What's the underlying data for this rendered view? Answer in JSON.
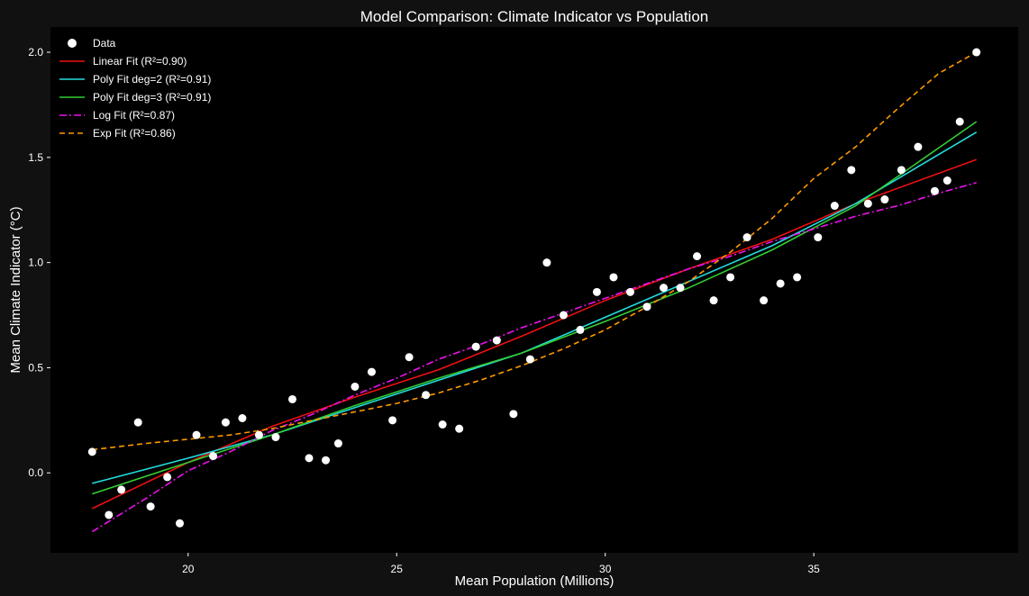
{
  "chart_data": {
    "type": "scatter",
    "title": "Model Comparison: Climate Indicator vs Population",
    "xlabel": "Mean Population (Millions)",
    "ylabel": "Mean Climate Indicator (°C)",
    "xlim": [
      16.7,
      39.9
    ],
    "ylim": [
      -0.38,
      2.12
    ],
    "xticks": [
      20,
      25,
      30,
      35
    ],
    "yticks": [
      0.0,
      0.5,
      1.0,
      1.5,
      2.0
    ],
    "xtick_labels": [
      "20",
      "25",
      "30",
      "35"
    ],
    "ytick_labels": [
      "0.0",
      "0.5",
      "1.0",
      "1.5",
      "2.0"
    ],
    "grid": false,
    "legend_position": "top-left",
    "colors": {
      "background": "#000000",
      "figure": "#111111",
      "points": "#ffffff"
    },
    "scatter": {
      "name": "Data",
      "x": [
        17.7,
        18.1,
        18.4,
        18.8,
        19.1,
        19.5,
        19.8,
        20.2,
        20.6,
        20.9,
        21.3,
        21.7,
        22.1,
        22.5,
        22.9,
        23.3,
        23.6,
        24.0,
        24.4,
        24.9,
        25.3,
        25.7,
        26.1,
        26.5,
        26.9,
        27.4,
        27.8,
        28.2,
        28.6,
        29.0,
        29.4,
        29.8,
        30.2,
        30.6,
        31.0,
        31.4,
        31.8,
        32.2,
        32.6,
        33.0,
        33.4,
        33.8,
        34.2,
        34.6,
        35.1,
        35.5,
        35.9,
        36.3,
        36.7,
        37.1,
        37.5,
        37.9,
        38.2,
        38.5,
        38.9
      ],
      "y": [
        0.1,
        -0.2,
        -0.08,
        0.24,
        -0.16,
        -0.02,
        -0.24,
        0.18,
        0.08,
        0.24,
        0.26,
        0.18,
        0.17,
        0.35,
        0.07,
        0.06,
        0.14,
        0.41,
        0.48,
        0.25,
        0.55,
        0.37,
        0.23,
        0.21,
        0.6,
        0.63,
        0.28,
        0.54,
        1.0,
        0.75,
        0.68,
        0.86,
        0.93,
        0.86,
        0.79,
        0.88,
        0.88,
        1.03,
        0.82,
        0.93,
        1.12,
        0.82,
        0.9,
        0.93,
        1.12,
        1.27,
        1.44,
        1.28,
        1.3,
        1.44,
        1.55,
        1.34,
        1.39,
        1.67,
        2.0
      ]
    },
    "series": [
      {
        "name": "Linear Fit (R²=0.90)",
        "color": "#ee1111",
        "dash": "solid",
        "x": [
          17.7,
          20,
          22,
          24,
          26,
          28,
          30,
          32,
          34,
          36,
          38.9
        ],
        "y": [
          -0.17,
          0.05,
          0.22,
          0.36,
          0.49,
          0.65,
          0.82,
          0.97,
          1.11,
          1.28,
          1.49
        ]
      },
      {
        "name": "Poly Fit deg=2 (R²=0.91)",
        "color": "#22dddd",
        "dash": "solid",
        "x": [
          17.7,
          20,
          22,
          24,
          26,
          28,
          30,
          32,
          34,
          36,
          38.9
        ],
        "y": [
          -0.05,
          0.07,
          0.18,
          0.31,
          0.44,
          0.57,
          0.74,
          0.91,
          1.08,
          1.28,
          1.62
        ]
      },
      {
        "name": "Poly Fit deg=3 (R²=0.91)",
        "color": "#33cc33",
        "dash": "solid",
        "x": [
          17.7,
          20,
          22,
          24,
          26,
          28,
          30,
          32,
          34,
          36,
          38.9
        ],
        "y": [
          -0.1,
          0.05,
          0.18,
          0.32,
          0.45,
          0.57,
          0.72,
          0.88,
          1.06,
          1.27,
          1.67
        ]
      },
      {
        "name": "Log Fit (R²=0.87)",
        "color": "#ee11ee",
        "dash": "dashdot",
        "x": [
          17.7,
          19,
          20,
          21,
          22,
          23,
          24,
          25,
          26,
          27,
          28,
          29,
          30,
          31,
          32,
          33,
          34,
          35,
          36,
          37,
          38,
          38.9
        ],
        "y": [
          -0.28,
          -0.12,
          0.01,
          0.1,
          0.2,
          0.28,
          0.37,
          0.45,
          0.54,
          0.61,
          0.69,
          0.76,
          0.83,
          0.9,
          0.97,
          1.03,
          1.1,
          1.16,
          1.22,
          1.27,
          1.33,
          1.38
        ]
      },
      {
        "name": "Exp Fit (R²=0.86)",
        "color": "#ff9900",
        "dash": "dashed",
        "x": [
          17.7,
          19,
          20,
          21,
          22,
          23,
          24,
          25,
          26,
          27,
          28,
          29,
          30,
          31,
          32,
          33,
          34,
          35,
          36,
          37,
          38,
          38.9
        ],
        "y": [
          0.11,
          0.14,
          0.16,
          0.18,
          0.21,
          0.25,
          0.29,
          0.33,
          0.38,
          0.44,
          0.51,
          0.59,
          0.68,
          0.79,
          0.91,
          1.05,
          1.21,
          1.4,
          1.55,
          1.73,
          1.9,
          2.0
        ]
      }
    ]
  }
}
